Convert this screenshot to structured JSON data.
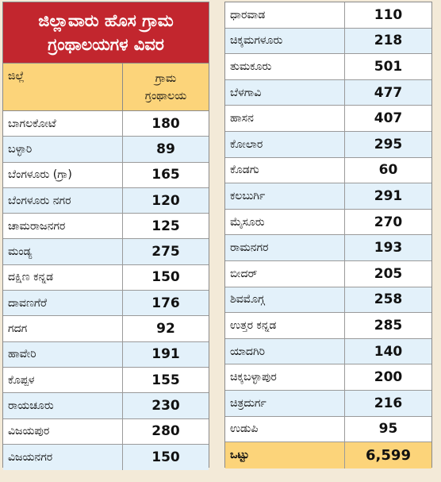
{
  "title_line1": "ಜಿಲ್ಲಾವಾರು ಹೊಸ ಗ್ರಾಮ",
  "title_line2": "ಗ್ರಂಥಾಲಯಗಳ ವಿವರ",
  "header": {
    "district": "ಜಿಲ್ಲೆ",
    "count_line1": "ಗ್ರಾಮ",
    "count_line2": "ಗ್ರಂಥಾಲಯ"
  },
  "left_rows": [
    {
      "name": "ಬಾಗಲಕೋಟೆ",
      "value": "180"
    },
    {
      "name": "ಬಳ್ಳಾರಿ",
      "value": "89"
    },
    {
      "name": "ಬೆಂಗಳೂರು (ಗ್ರಾ)",
      "value": "165"
    },
    {
      "name": "ಬೆಂಗಳೂರು ನಗರ",
      "value": "120"
    },
    {
      "name": "ಚಾಮರಾಜನಗರ",
      "value": "125"
    },
    {
      "name": "ಮಂಡ್ಯ",
      "value": "275"
    },
    {
      "name": "ದಕ್ಷಿಣ ಕನ್ನಡ",
      "value": "150"
    },
    {
      "name": "ದಾವಣಗೆರೆ",
      "value": "176"
    },
    {
      "name": "ಗದಗ",
      "value": "92"
    },
    {
      "name": "ಹಾವೇರಿ",
      "value": "191"
    },
    {
      "name": "ಕೊಪ್ಪಳ",
      "value": "155"
    },
    {
      "name": "ರಾಯಚೂರು",
      "value": "230"
    },
    {
      "name": "ವಿಜಯಪುರ",
      "value": "280"
    },
    {
      "name": "ವಿಜಯನಗರ",
      "value": "150"
    }
  ],
  "right_rows": [
    {
      "name": "ಧಾರವಾಡ",
      "value": "110"
    },
    {
      "name": "ಚಿಕ್ಕಮಗಳೂರು",
      "value": "218"
    },
    {
      "name": "ತುಮಕೂರು",
      "value": "501"
    },
    {
      "name": "ಬೆಳಗಾವಿ",
      "value": "477"
    },
    {
      "name": "ಹಾಸನ",
      "value": "407"
    },
    {
      "name": "ಕೋಲಾರ",
      "value": "295"
    },
    {
      "name": "ಕೊಡಗು",
      "value": "60"
    },
    {
      "name": "ಕಲಬುರ್ಗಿ",
      "value": "291"
    },
    {
      "name": "ಮೈಸೂರು",
      "value": "270"
    },
    {
      "name": "ರಾಮನಗರ",
      "value": "193"
    },
    {
      "name": "ಬೀದರ್",
      "value": "205"
    },
    {
      "name": "ಶಿವಮೊಗ್ಗ",
      "value": "258"
    },
    {
      "name": "ಉತ್ತರ ಕನ್ನಡ",
      "value": "285"
    },
    {
      "name": "ಯಾದಗಿರಿ",
      "value": "140"
    },
    {
      "name": "ಚಿಕ್ಕಬಳ್ಳಾಪುರ",
      "value": "200"
    },
    {
      "name": "ಚಿತ್ರದುರ್ಗ",
      "value": "216"
    },
    {
      "name": "ಉಡುಪಿ",
      "value": "95"
    },
    {
      "name": "ಒಟ್ಟು",
      "value": "6,599"
    }
  ],
  "colors": {
    "title_bg": "#c2262e",
    "header_bg": "#fcd47a",
    "alt_row_bg": "#e3f1fa",
    "page_bg": "#f3ead8"
  }
}
